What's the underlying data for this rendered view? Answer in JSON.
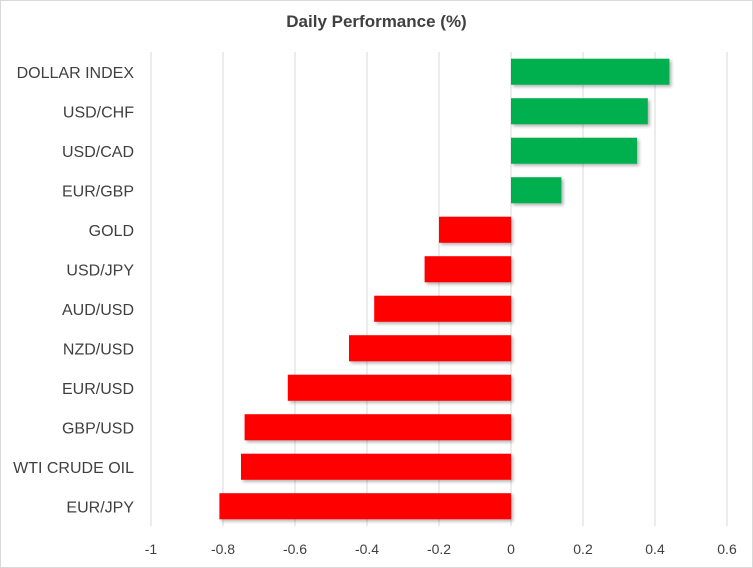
{
  "chart_data": {
    "type": "bar",
    "orientation": "horizontal",
    "title": "Daily Performance  (%)",
    "xlabel": "",
    "ylabel": "",
    "categories": [
      "DOLLAR INDEX",
      "USD/CHF",
      "USD/CAD",
      "EUR/GBP",
      "GOLD",
      "USD/JPY",
      "AUD/USD",
      "NZD/USD",
      "EUR/USD",
      "GBP/USD",
      "WTI CRUDE OIL",
      "EUR/JPY"
    ],
    "values": [
      0.44,
      0.38,
      0.35,
      0.14,
      -0.2,
      -0.24,
      -0.38,
      -0.45,
      -0.62,
      -0.74,
      -0.75,
      -0.81
    ],
    "xlim": [
      -1,
      0.6
    ],
    "xticks": [
      -1,
      -0.8,
      -0.6,
      -0.4,
      -0.2,
      0,
      0.2,
      0.4,
      0.6
    ],
    "xtick_labels": [
      "-1",
      "-0.8",
      "-0.6",
      "-0.4",
      "-0.2",
      "0",
      "0.2",
      "0.4",
      "0.6"
    ],
    "grid": "vertical",
    "legend": "none",
    "colors": {
      "positive": "#00b050",
      "negative": "#ff0000",
      "grid": "#d9d9d9",
      "text": "#404040"
    }
  }
}
